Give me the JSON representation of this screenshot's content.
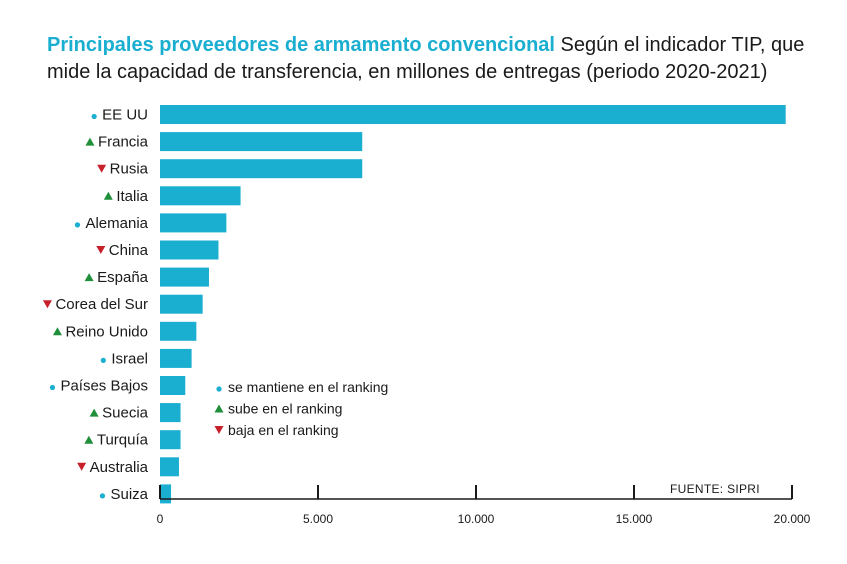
{
  "header": {
    "title": "Principales proveedores de armamento convencional",
    "subtitle": "Según el indicador TIP, que mide la capacidad de transferencia, en millones de entregas (periodo 2020-2021)"
  },
  "colors": {
    "bar": "#1aaed0",
    "same": "#1aaed0",
    "up": "#1f8f3a",
    "down": "#c8202b",
    "axis": "#1a1a1a"
  },
  "legend": {
    "items": [
      {
        "marker": "same",
        "label": "se mantiene en el ranking"
      },
      {
        "marker": "up",
        "label": "sube en el ranking"
      },
      {
        "marker": "down",
        "label": "baja en el ranking"
      }
    ]
  },
  "source": "FUENTE:  SIPRI",
  "chart_data": {
    "type": "bar",
    "orientation": "horizontal",
    "categories": [
      "EE UU",
      "Francia",
      "Rusia",
      "Italia",
      "Alemania",
      "China",
      "España",
      "Corea del Sur",
      "Reino Unido",
      "Israel",
      "Países Bajos",
      "Suecia",
      "Turquía",
      "Australia",
      "Suiza"
    ],
    "values": [
      19800,
      6400,
      6400,
      2550,
      2100,
      1850,
      1550,
      1350,
      1150,
      1000,
      800,
      650,
      650,
      600,
      350
    ],
    "trend": [
      "same",
      "up",
      "down",
      "up",
      "same",
      "down",
      "up",
      "down",
      "up",
      "same",
      "same",
      "up",
      "up",
      "down",
      "same"
    ],
    "xlim": [
      0,
      20000
    ],
    "xticks": [
      0,
      5000,
      10000,
      15000,
      20000
    ],
    "xtick_labels": [
      "0",
      "5.000",
      "10.000",
      "15.000",
      "20.000"
    ],
    "grid": false,
    "legend_position": "bottom-center"
  }
}
